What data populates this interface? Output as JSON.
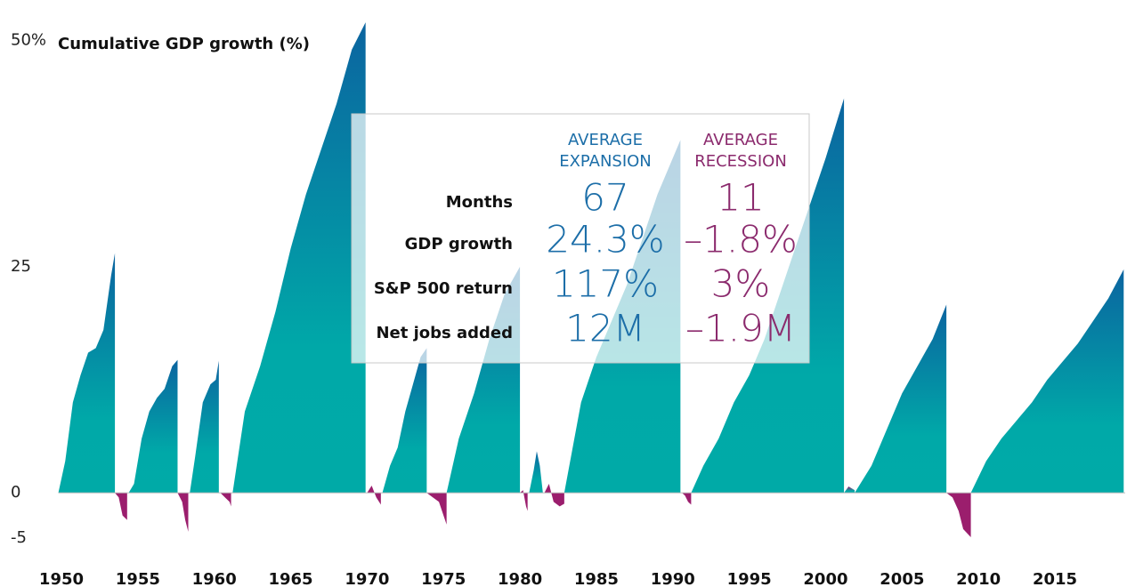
{
  "chart_data": {
    "type": "area",
    "y_label": "Cumulative GDP growth (%)",
    "xlim": [
      1949.5,
      2019.6
    ],
    "xticks": [
      1950,
      1955,
      1960,
      1965,
      1970,
      1975,
      1980,
      1985,
      1990,
      1995,
      2000,
      2005,
      2010,
      2015
    ],
    "ylim": [
      -5,
      53
    ],
    "yticks": [
      {
        "value": 50,
        "label": "50%"
      },
      25,
      0,
      -5
    ],
    "grid": false,
    "series": [
      {
        "color": "#0b64a0",
        "x": [
          1949.8,
          1950.25,
          1950.75,
          1951.25,
          1951.75,
          1952.25,
          1952.75,
          1953.25,
          1953.5
        ],
        "values": [
          0,
          3.5,
          10,
          13,
          15.5,
          16,
          18,
          24,
          26.5
        ]
      },
      {
        "color": "#9b1e6d",
        "x": [
          1953.5,
          1953.75,
          1954,
          1954.3
        ],
        "values": [
          0,
          -0.5,
          -2.5,
          -3
        ]
      },
      {
        "color": "#0b64a0",
        "x": [
          1954.4,
          1954.75,
          1955.25,
          1955.75,
          1956.25,
          1956.75,
          1957.25,
          1957.6
        ],
        "values": [
          0,
          1,
          6,
          9,
          10.5,
          11.5,
          14,
          14.7
        ]
      },
      {
        "color": "#9b1e6d",
        "x": [
          1957.6,
          1957.9,
          1958.1,
          1958.3
        ],
        "values": [
          0,
          -1,
          -3,
          -4.3
        ]
      },
      {
        "color": "#0b64a0",
        "x": [
          1958.4,
          1958.75,
          1959.25,
          1959.75,
          1960.1,
          1960.3
        ],
        "values": [
          0,
          4,
          10,
          12,
          12.5,
          14.6
        ]
      },
      {
        "color": "#9b1e6d",
        "x": [
          1960.4,
          1960.7,
          1961,
          1961.1
        ],
        "values": [
          0,
          -0.5,
          -1,
          -1.5
        ]
      },
      {
        "color": "#0b64a0",
        "x": [
          1961.2,
          1962,
          1963,
          1964,
          1965,
          1966,
          1967,
          1968,
          1969,
          1969.9
        ],
        "values": [
          0,
          9,
          14,
          20,
          27,
          33,
          38,
          43,
          49,
          52
        ]
      },
      {
        "color": "#9b1e6d",
        "x": [
          1970,
          1970.3,
          1970.6,
          1970.9
        ],
        "values": [
          0,
          0.8,
          -0.5,
          -1.3
        ]
      },
      {
        "color": "#0b64a0",
        "x": [
          1971,
          1971.5,
          1972,
          1972.5,
          1973,
          1973.5,
          1973.9
        ],
        "values": [
          0,
          3,
          5,
          9,
          12,
          15,
          16
        ]
      },
      {
        "color": "#9b1e6d",
        "x": [
          1973.9,
          1974.3,
          1974.7,
          1975,
          1975.2
        ],
        "values": [
          0,
          -0.5,
          -1,
          -2.5,
          -3.5
        ]
      },
      {
        "color": "#0b64a0",
        "x": [
          1975.2,
          1976,
          1977,
          1978,
          1979,
          1980
        ],
        "values": [
          0,
          6,
          11,
          17,
          22,
          25
        ]
      },
      {
        "color": "#9b1e6d",
        "x": [
          1980,
          1980.2,
          1980.4,
          1980.5
        ],
        "values": [
          0,
          0.3,
          -1.5,
          -2
        ]
      },
      {
        "color": "#0b64a0",
        "x": [
          1980.6,
          1980.9,
          1981.1,
          1981.3,
          1981.5
        ],
        "values": [
          0,
          2.5,
          4.6,
          3,
          0
        ]
      },
      {
        "color": "#9b1e6d",
        "x": [
          1981.6,
          1981.9,
          1982.2,
          1982.6,
          1982.9
        ],
        "values": [
          0,
          1,
          -1,
          -1.5,
          -1.2
        ]
      },
      {
        "color": "#0b64a0",
        "x": [
          1982.9,
          1984,
          1985,
          1986,
          1987,
          1988,
          1989,
          1990,
          1990.5
        ],
        "values": [
          0,
          10,
          15,
          19,
          23,
          28,
          33,
          37,
          39
        ]
      },
      {
        "color": "#9b1e6d",
        "x": [
          1990.6,
          1990.8,
          1991,
          1991.2
        ],
        "values": [
          0,
          -0.3,
          -1,
          -1.3
        ]
      },
      {
        "color": "#0b64a0",
        "x": [
          1991.2,
          1992,
          1993,
          1994,
          1995,
          1996,
          1997,
          1998,
          1999,
          2000,
          2001.2
        ],
        "values": [
          0,
          3,
          6,
          10,
          13,
          17,
          22,
          27,
          32,
          37,
          43.6
        ]
      },
      {
        "color": "#9b1e6d",
        "x": [
          2001.2,
          2001.5,
          2001.9
        ],
        "values": [
          0,
          0.7,
          0.3
        ]
      },
      {
        "color": "#0b64a0",
        "x": [
          2001.9,
          2003,
          2004,
          2005,
          2006,
          2007,
          2007.9
        ],
        "values": [
          0,
          3,
          7,
          11,
          14,
          17,
          20.8
        ]
      },
      {
        "color": "#9b1e6d",
        "x": [
          2007.9,
          2008.3,
          2008.7,
          2009,
          2009.5
        ],
        "values": [
          0,
          -0.5,
          -2,
          -4,
          -4.9
        ]
      },
      {
        "color": "#0b64a0",
        "x": [
          2009.5,
          2010.5,
          2011.5,
          2012.5,
          2013.5,
          2014.5,
          2015.5,
          2016.5,
          2017.5,
          2018.5,
          2019.5
        ],
        "values": [
          0,
          3.5,
          6,
          8,
          10,
          12.5,
          14.5,
          16.5,
          19,
          21.5,
          24.7
        ]
      }
    ],
    "summary_table": {
      "columns": [
        {
          "lines": [
            "AVERAGE",
            "EXPANSION"
          ],
          "color": "#1c6ea8"
        },
        {
          "lines": [
            "AVERAGE",
            "RECESSION"
          ],
          "color": "#8b2a6d"
        }
      ],
      "rows": [
        {
          "label": "Months",
          "cells": [
            "67",
            "11"
          ]
        },
        {
          "label": "GDP growth",
          "cells": [
            "24.3%",
            "–1.8%"
          ]
        },
        {
          "label": "S&P 500 return",
          "cells": [
            "117%",
            "3%"
          ]
        },
        {
          "label": "Net jobs added",
          "cells": [
            "12M",
            "–1.9M"
          ]
        }
      ]
    }
  }
}
